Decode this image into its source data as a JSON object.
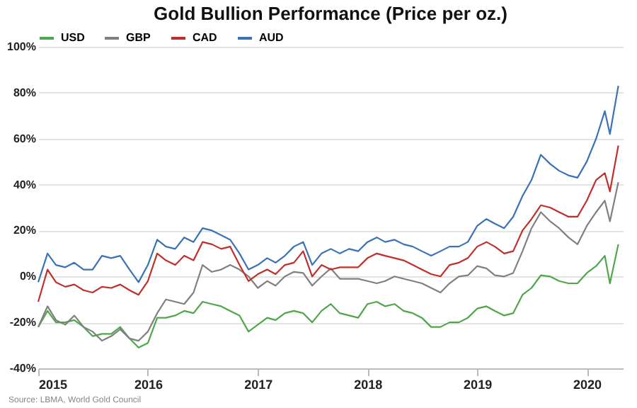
{
  "chart_data": {
    "type": "line",
    "title": "Gold Bullion Performance (Price per oz.)",
    "annotations": [
      "Source: LBMA, World Gold Council"
    ],
    "x": [
      "2015-01-01",
      "2015-02-01",
      "2015-03-01",
      "2015-04-01",
      "2015-05-01",
      "2015-06-01",
      "2015-07-01",
      "2015-08-01",
      "2015-09-01",
      "2015-10-01",
      "2015-11-01",
      "2015-12-01",
      "2016-01-01",
      "2016-02-01",
      "2016-03-01",
      "2016-04-01",
      "2016-05-01",
      "2016-06-01",
      "2016-07-01",
      "2016-08-01",
      "2016-09-01",
      "2016-10-01",
      "2016-11-01",
      "2016-12-01",
      "2017-01-01",
      "2017-02-01",
      "2017-03-01",
      "2017-04-01",
      "2017-05-01",
      "2017-06-01",
      "2017-07-01",
      "2017-08-01",
      "2017-09-01",
      "2017-10-01",
      "2017-11-01",
      "2017-12-01",
      "2018-01-01",
      "2018-02-01",
      "2018-03-01",
      "2018-04-01",
      "2018-05-01",
      "2018-06-01",
      "2018-07-01",
      "2018-08-01",
      "2018-09-01",
      "2018-10-01",
      "2018-11-01",
      "2018-12-01",
      "2019-01-01",
      "2019-02-01",
      "2019-03-01",
      "2019-04-01",
      "2019-05-01",
      "2019-06-01",
      "2019-07-01",
      "2019-08-01",
      "2019-09-01",
      "2019-10-01",
      "2019-11-01",
      "2019-12-01",
      "2020-01-01",
      "2020-02-01",
      "2020-03-01",
      "2020-03-18",
      "2020-04-15"
    ],
    "series": [
      {
        "name": "USD",
        "color": "#4ea84a",
        "values": [
          -22,
          -15,
          -20,
          -20,
          -19,
          -22,
          -26,
          -25,
          -25,
          -22,
          -27,
          -31,
          -29,
          -18,
          -18,
          -17,
          -15,
          -16,
          -11,
          -12,
          -13,
          -15,
          -17,
          -24,
          -21,
          -18,
          -19,
          -16,
          -15,
          -16,
          -20,
          -15,
          -12,
          -16,
          -17,
          -18,
          -12,
          -11,
          -13,
          -12,
          -15,
          -16,
          -18,
          -22,
          -22,
          -20,
          -20,
          -18,
          -14,
          -13,
          -15,
          -17,
          -16,
          -8,
          -5,
          0.5,
          0,
          -2,
          -3,
          -3,
          1.5,
          4.5,
          9,
          -3,
          14
        ]
      },
      {
        "name": "GBP",
        "color": "#808080",
        "values": [
          -22,
          -13,
          -19,
          -21,
          -17,
          -22,
          -24,
          -28,
          -26,
          -23,
          -27,
          -28,
          -24,
          -16,
          -10,
          -11,
          -12,
          -7,
          5,
          2,
          3,
          5,
          3,
          0,
          -5,
          -2,
          -4,
          0,
          2,
          1.5,
          -4,
          0,
          3.5,
          -1,
          -1,
          -1,
          -2,
          -3,
          -2,
          0,
          -1,
          -2,
          -3,
          -5,
          -7,
          -3,
          0,
          0.5,
          4.5,
          3.5,
          0.5,
          0,
          1.5,
          11,
          21,
          28,
          24,
          21,
          17,
          14,
          22,
          28,
          33,
          24,
          41
        ]
      },
      {
        "name": "CAD",
        "color": "#c0302a",
        "values": [
          -11,
          3,
          -2.5,
          -4.5,
          -3.5,
          -6,
          -7,
          -4.5,
          -5,
          -3.5,
          -6,
          -8,
          -2,
          10,
          7,
          5,
          9,
          7,
          15,
          14,
          12,
          13,
          5,
          -2,
          1,
          3,
          1,
          5,
          6,
          11,
          0,
          5,
          3,
          4,
          4,
          4,
          8,
          10,
          9,
          8,
          7,
          5,
          3,
          1,
          0,
          5,
          6,
          8,
          13,
          15,
          13,
          10,
          11,
          20,
          25,
          31,
          30,
          28,
          26,
          26,
          33,
          42,
          45,
          37,
          57
        ]
      },
      {
        "name": "AUD",
        "color": "#3a72b8",
        "values": [
          -2.5,
          10,
          5,
          4,
          6,
          3,
          3,
          9,
          8,
          9,
          3,
          -2.5,
          5,
          16,
          13,
          12,
          17,
          15,
          21,
          20,
          18,
          16,
          10,
          3,
          5,
          8,
          6,
          9,
          13,
          15,
          5,
          10,
          12,
          10,
          12,
          11,
          15,
          17,
          15,
          16,
          14,
          13,
          11,
          9,
          11,
          13,
          13,
          15,
          22,
          25,
          23,
          21,
          26,
          35,
          42,
          53,
          49,
          46,
          44,
          43,
          50,
          60,
          72,
          62,
          83
        ]
      }
    ],
    "xlim": [
      "2015-01-01",
      "2020-04-30"
    ],
    "xticks": [
      {
        "value": "2015-01-01",
        "label": "2015"
      },
      {
        "value": "2016-01-01",
        "label": "2016"
      },
      {
        "value": "2017-01-01",
        "label": "2017"
      },
      {
        "value": "2018-01-01",
        "label": "2018"
      },
      {
        "value": "2019-01-01",
        "label": "2019"
      },
      {
        "value": "2020-01-01",
        "label": "2020"
      }
    ],
    "ylim": [
      -40,
      100
    ],
    "yticks": [
      {
        "value": -40,
        "label": "-40%"
      },
      {
        "value": -20,
        "label": "-20%"
      },
      {
        "value": 0,
        "label": "0%"
      },
      {
        "value": 20,
        "label": "20%"
      },
      {
        "value": 40,
        "label": "40%"
      },
      {
        "value": 60,
        "label": "60%"
      },
      {
        "value": 80,
        "label": "80%"
      },
      {
        "value": 100,
        "label": "100%"
      }
    ],
    "grid": "y",
    "legend": "top",
    "line_style": "solid"
  }
}
